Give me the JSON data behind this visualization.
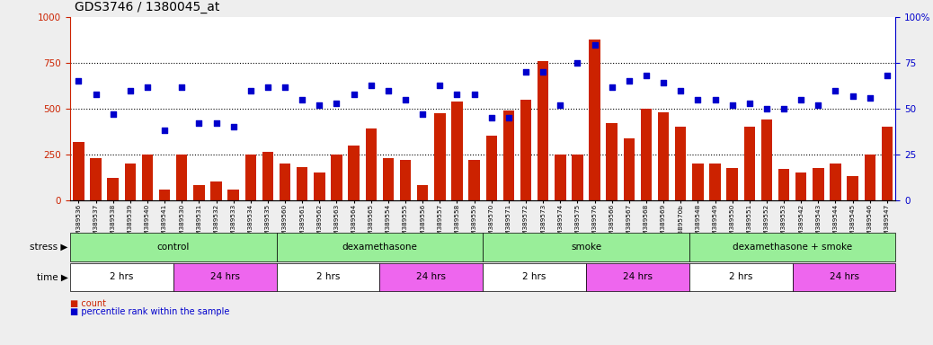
{
  "title": "GDS3746 / 1380045_at",
  "samples": [
    "GSM389536",
    "GSM389537",
    "GSM389538",
    "GSM389539",
    "GSM389540",
    "GSM389541",
    "GSM389530",
    "GSM389531",
    "GSM389532",
    "GSM389533",
    "GSM389534",
    "GSM389535",
    "GSM389560",
    "GSM389561",
    "GSM389562",
    "GSM389563",
    "GSM389564",
    "GSM389565",
    "GSM389554",
    "GSM389555",
    "GSM389556",
    "GSM389557",
    "GSM389558",
    "GSM389559",
    "GSM389570",
    "GSM389571",
    "GSM389572",
    "GSM389573",
    "GSM389574",
    "GSM389575",
    "GSM389576",
    "GSM389566",
    "GSM389567",
    "GSM389568",
    "GSM389569",
    "GSM389570b",
    "GSM389548",
    "GSM389549",
    "GSM389550",
    "GSM389551",
    "GSM389552",
    "GSM389553",
    "GSM389542",
    "GSM389543",
    "GSM389544",
    "GSM389545",
    "GSM389546",
    "GSM389547"
  ],
  "counts": [
    320,
    230,
    120,
    200,
    250,
    60,
    250,
    80,
    100,
    60,
    250,
    265,
    200,
    180,
    150,
    250,
    300,
    390,
    230,
    220,
    80,
    475,
    540,
    220,
    350,
    490,
    550,
    760,
    250,
    250,
    880,
    420,
    340,
    500,
    480,
    400,
    200,
    200,
    175,
    400,
    440,
    170,
    150,
    175,
    200,
    130,
    250,
    400
  ],
  "percentiles": [
    65,
    58,
    47,
    60,
    62,
    38,
    62,
    42,
    42,
    40,
    60,
    62,
    62,
    55,
    52,
    53,
    58,
    63,
    60,
    55,
    47,
    63,
    58,
    58,
    45,
    45,
    70,
    70,
    52,
    75,
    85,
    62,
    65,
    68,
    64,
    60,
    55,
    55,
    52,
    53,
    50,
    50,
    55,
    52,
    60,
    57,
    56,
    68
  ],
  "bar_color": "#cc2200",
  "dot_color": "#0000cc",
  "ylim_left": [
    0,
    1000
  ],
  "ylim_right": [
    0,
    100
  ],
  "yticks_left": [
    0,
    250,
    500,
    750,
    1000
  ],
  "yticks_right": [
    0,
    25,
    50,
    75,
    100
  ],
  "stress_groups": [
    {
      "label": "control",
      "start": 0,
      "end": 12,
      "color": "#99ee99"
    },
    {
      "label": "dexamethasone",
      "start": 12,
      "end": 24,
      "color": "#99ee99"
    },
    {
      "label": "smoke",
      "start": 24,
      "end": 36,
      "color": "#99ee99"
    },
    {
      "label": "dexamethasone + smoke",
      "start": 36,
      "end": 48,
      "color": "#99ee99"
    }
  ],
  "time_groups": [
    {
      "label": "2 hrs",
      "start": 0,
      "end": 6,
      "color": "#ffffff"
    },
    {
      "label": "24 hrs",
      "start": 6,
      "end": 12,
      "color": "#ee66ee"
    },
    {
      "label": "2 hrs",
      "start": 12,
      "end": 18,
      "color": "#ffffff"
    },
    {
      "label": "24 hrs",
      "start": 18,
      "end": 24,
      "color": "#ee66ee"
    },
    {
      "label": "2 hrs",
      "start": 24,
      "end": 30,
      "color": "#ffffff"
    },
    {
      "label": "24 hrs",
      "start": 30,
      "end": 36,
      "color": "#ee66ee"
    },
    {
      "label": "2 hrs",
      "start": 36,
      "end": 42,
      "color": "#ffffff"
    },
    {
      "label": "24 hrs",
      "start": 42,
      "end": 48,
      "color": "#ee66ee"
    }
  ],
  "legend_count_color": "#cc2200",
  "legend_dot_color": "#0000cc",
  "bg_color": "#eeeeee"
}
